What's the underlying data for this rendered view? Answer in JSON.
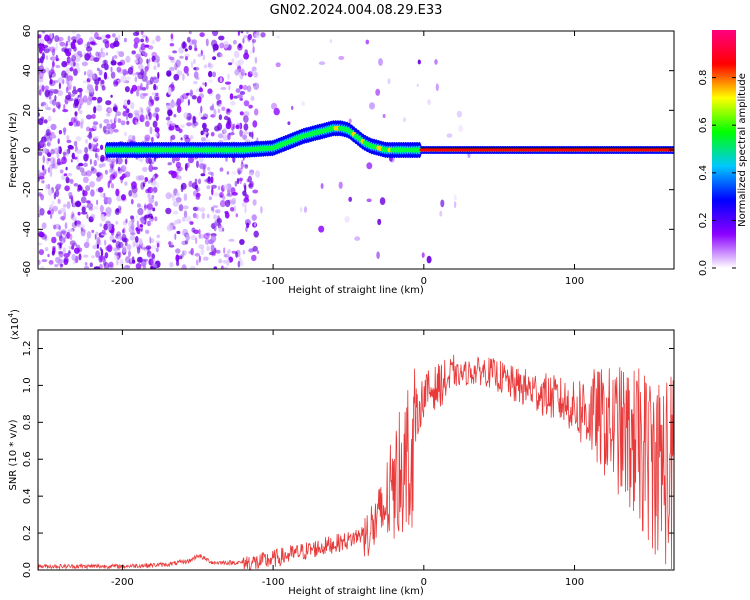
{
  "title": "GN02.2024.004.08.29.E33",
  "chart_data": [
    {
      "type": "heatmap",
      "xlabel": "Height of straight line (km)",
      "ylabel": "Frequency (Hz)",
      "xlim": [
        -256,
        166
      ],
      "ylim": [
        -60,
        60
      ],
      "xticks": [
        -200,
        -100,
        0,
        100
      ],
      "yticks": [
        -60,
        -40,
        -20,
        0,
        20,
        40,
        60
      ],
      "colorbar": {
        "label": "Normalized spectral amplitude",
        "range": [
          0,
          1
        ],
        "ticks": [
          "0.0",
          "0.2",
          "0.4",
          "0.6",
          "0.8"
        ],
        "colors": [
          "#ffffff",
          "#8a00ff",
          "#0000ff",
          "#00c8ff",
          "#00ff00",
          "#ffff00",
          "#ff0000",
          "#ff0080"
        ]
      },
      "ridge": {
        "x": [
          -210,
          -180,
          -150,
          -120,
          -100,
          -90,
          -80,
          -70,
          -60,
          -55,
          -50,
          -45,
          -40,
          -35,
          -30,
          -25,
          -20,
          -15,
          -10,
          -5,
          0,
          50,
          100,
          166
        ],
        "frequency": [
          0,
          0,
          0,
          0,
          1,
          4,
          7,
          9,
          11,
          11,
          10,
          7,
          4,
          2,
          1,
          0,
          0,
          0,
          0,
          0,
          0,
          0,
          0,
          0
        ]
      }
    },
    {
      "type": "line",
      "xlabel": "Height of straight line (km)",
      "ylabel": "SNR (10 * v/v)",
      "scale_label": "(x10",
      "scale_exp": "4",
      "xlim": [
        -256,
        166
      ],
      "ylim": [
        0,
        1.3
      ],
      "xticks": [
        -200,
        -100,
        0,
        100
      ],
      "yticks": [
        "0.0",
        "0.2",
        "0.4",
        "0.6",
        "0.8",
        "1.0",
        "1.2"
      ],
      "color": "#e83a3a",
      "envelope": {
        "x": [
          -256,
          -200,
          -170,
          -155,
          -150,
          -140,
          -110,
          -100,
          -80,
          -60,
          -50,
          -40,
          -30,
          -25,
          -20,
          -15,
          -10,
          -5,
          0,
          10,
          20,
          30,
          40,
          50,
          60,
          70,
          80,
          90,
          100,
          110,
          120,
          130,
          140,
          150,
          160,
          166
        ],
        "y": [
          0.02,
          0.02,
          0.03,
          0.05,
          0.08,
          0.04,
          0.04,
          0.06,
          0.1,
          0.14,
          0.16,
          0.2,
          0.3,
          0.4,
          0.5,
          0.6,
          0.7,
          0.82,
          0.95,
          1.0,
          1.05,
          1.07,
          1.08,
          1.05,
          1.0,
          0.98,
          0.95,
          0.92,
          0.88,
          0.85,
          0.8,
          0.75,
          0.68,
          0.6,
          0.55,
          0.5
        ]
      }
    }
  ]
}
